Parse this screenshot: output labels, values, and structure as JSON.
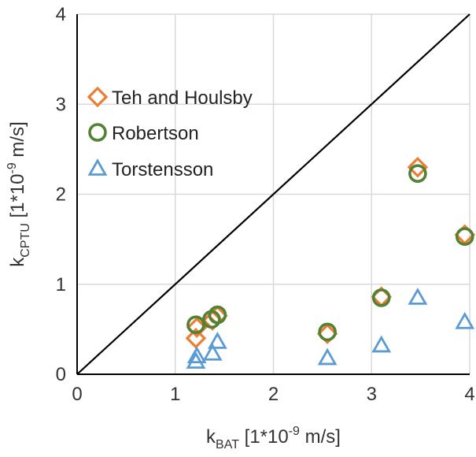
{
  "chart_data": {
    "type": "scatter",
    "xlabel": {
      "main": "k",
      "sub": "BAT",
      "rest": " [1*10",
      "sup": "-9",
      "unit": " m/s]"
    },
    "ylabel": {
      "main": "k",
      "sub": "CPTU",
      "rest": " [1*10",
      "sup": "-9",
      "unit": " m/s]"
    },
    "xlim": [
      0,
      4
    ],
    "ylim": [
      0,
      4
    ],
    "xticks": [
      "0",
      "1",
      "2",
      "3",
      "4"
    ],
    "yticks": [
      "0",
      "1",
      "2",
      "3",
      "4"
    ],
    "grid": true,
    "reference_line": {
      "type": "1:1",
      "from": [
        0,
        0
      ],
      "to": [
        4,
        4
      ],
      "color": "#000000"
    },
    "legend_position": "left-upper",
    "series": [
      {
        "name": "Teh and Houlsby",
        "marker": "diamond",
        "color": "#ED7D31",
        "points": [
          [
            1.21,
            0.4
          ],
          [
            1.22,
            0.52
          ],
          [
            1.38,
            0.6
          ],
          [
            1.43,
            0.65
          ],
          [
            2.55,
            0.45
          ],
          [
            3.1,
            0.86
          ],
          [
            3.47,
            2.3
          ],
          [
            3.95,
            1.55
          ]
        ]
      },
      {
        "name": "Robertson",
        "marker": "circle",
        "color": "#548235",
        "points": [
          [
            1.21,
            0.55
          ],
          [
            1.37,
            0.61
          ],
          [
            1.43,
            0.66
          ],
          [
            2.55,
            0.47
          ],
          [
            3.1,
            0.85
          ],
          [
            3.47,
            2.23
          ],
          [
            3.95,
            1.53
          ]
        ]
      },
      {
        "name": "Torstensson",
        "marker": "triangle",
        "color": "#5B9BD5",
        "points": [
          [
            1.21,
            0.14
          ],
          [
            1.22,
            0.2
          ],
          [
            1.38,
            0.23
          ],
          [
            1.43,
            0.36
          ],
          [
            2.55,
            0.18
          ],
          [
            3.1,
            0.32
          ],
          [
            3.47,
            0.85
          ],
          [
            3.95,
            0.58
          ]
        ]
      }
    ]
  }
}
